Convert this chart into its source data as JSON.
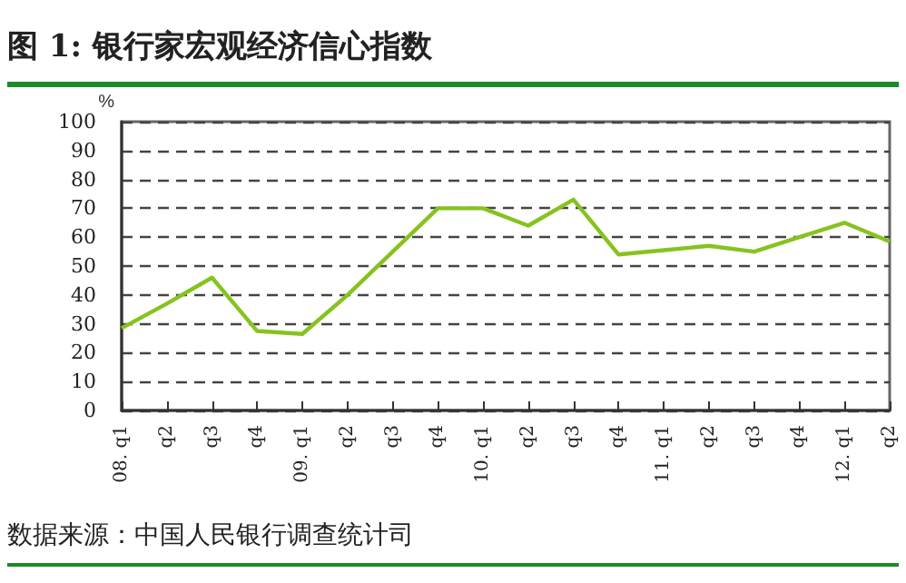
{
  "chart_data": {
    "type": "line",
    "title": "图 1: 银行家宏观经济信心指数",
    "ylabel": "%",
    "categories": [
      "08. q1",
      "q2",
      "q3",
      "q4",
      "09. q1",
      "q2",
      "q3",
      "q4",
      "10. q1",
      "q2",
      "q3",
      "q4",
      "11. q1",
      "q2",
      "q3",
      "q4",
      "12. q1",
      "q2"
    ],
    "series": [
      {
        "color": "#86c31f",
        "values": [
          28.5,
          37,
          46,
          27.5,
          26.5,
          40,
          55,
          70,
          70,
          64,
          73,
          54,
          55.5,
          57,
          55,
          60,
          65,
          58.5
        ]
      }
    ],
    "ylim": [
      0,
      100
    ],
    "yticks": [
      0,
      10,
      20,
      30,
      40,
      50,
      60,
      70,
      80,
      90,
      100
    ],
    "grid": "y",
    "marker": "none",
    "line_style": "solid",
    "annotations": [
      "数据来源：中国人民银行调查统计司"
    ]
  }
}
